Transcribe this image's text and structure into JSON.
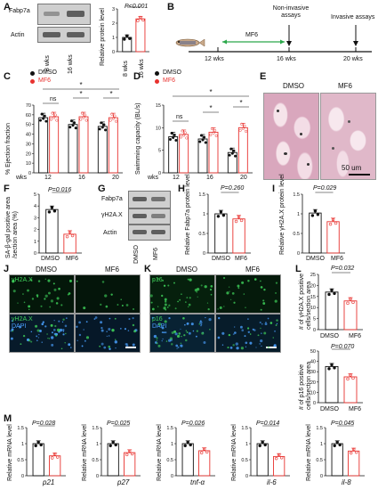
{
  "panels": {
    "A": {
      "label": "A",
      "blot_labels": [
        "Fabp7a",
        "Actin"
      ],
      "lanes": [
        "8 wks",
        "16 wks"
      ],
      "chart_label": "Relative protein level",
      "pvalue": "P<0.001"
    },
    "B": {
      "label": "B",
      "treatment": "MF6",
      "weeks": [
        "12 wks",
        "16 wks",
        "20 wks"
      ],
      "noninvasive": "Non-invasive assays",
      "invasive": "Invasive assays"
    },
    "C": {
      "label": "C",
      "ylabel": "% Ejection fraction",
      "ns": "ns",
      "star": "*"
    },
    "D": {
      "label": "D",
      "ylabel": "Swimming capacity (BL/s)",
      "ns": "ns",
      "star": "*"
    },
    "E": {
      "label": "E",
      "groups": [
        "DMSO",
        "MF6"
      ],
      "scale": "50 um"
    },
    "F": {
      "label": "F",
      "ylabel": "SA-β-gal positive area /section area (%)",
      "pvalue": "P=0.016"
    },
    "G": {
      "label": "G",
      "blot_labels": [
        "Fabp7a",
        "γH2A.X",
        "Actin"
      ],
      "lanes": [
        "DMSO",
        "MF6"
      ]
    },
    "H": {
      "label": "H",
      "ylabel": "Relative Fabp7a protein level",
      "pvalue": "P=0.260"
    },
    "I": {
      "label": "I",
      "ylabel": "Relative γH2A.X protein level",
      "pvalue": "P=0.029"
    },
    "J": {
      "label": "J",
      "groups": [
        "DMSO",
        "MF6"
      ],
      "stain1": "γH2A.X",
      "stain2": "γH2A.X",
      "dapi": "DAPI"
    },
    "K": {
      "label": "K",
      "groups": [
        "DMSO",
        "MF6"
      ],
      "stain1": "p16",
      "stain2": "p16",
      "dapi": "DAPI"
    },
    "L": {
      "label": "L",
      "ylabel1": "# of γH2A.X positive cells/section area",
      "pvalue1": "P=0.032",
      "ylabel2": "# of p16 positive cells/section area",
      "pvalue2": "P=0.070"
    },
    "M": {
      "label": "M",
      "ylabel": "Relative mRNA level",
      "genes": [
        "p21",
        "p27",
        "tnf-α",
        "il-6",
        "il-8"
      ],
      "pvalues": [
        "P=0.028",
        "P=0.025",
        "P=0.026",
        "P=0.014",
        "P=0.045"
      ]
    }
  },
  "legend": {
    "dmso": "DMSO",
    "mf6": "MF6"
  },
  "week_axis": {
    "prefix": "wks",
    "ticks": [
      "12",
      "16",
      "20"
    ]
  },
  "colors": {
    "dmso": "#111111",
    "mf6": "#e8322f",
    "green_arrow": "#2aa84a"
  },
  "chart_data": [
    {
      "type": "bar",
      "panel": "A",
      "categories": [
        "8 wks",
        "16 wks"
      ],
      "values": [
        1.0,
        2.3
      ],
      "ylim": [
        0,
        3
      ],
      "yticks": [
        0,
        1,
        2,
        3
      ]
    },
    {
      "type": "bar",
      "panel": "C",
      "categories": [
        "12",
        "16",
        "20"
      ],
      "series": [
        {
          "name": "DMSO",
          "values": [
            57,
            50,
            48
          ]
        },
        {
          "name": "MF6",
          "values": [
            58,
            58,
            57
          ]
        }
      ],
      "ylim": [
        0,
        70
      ],
      "yticks": [
        0,
        10,
        20,
        30,
        40,
        50,
        60,
        70
      ]
    },
    {
      "type": "bar",
      "panel": "D",
      "categories": [
        "12",
        "16",
        "20"
      ],
      "series": [
        {
          "name": "DMSO",
          "values": [
            8,
            7.5,
            4.5
          ]
        },
        {
          "name": "MF6",
          "values": [
            8.5,
            9,
            10
          ]
        }
      ],
      "ylim": [
        0,
        15
      ],
      "yticks": [
        0,
        5,
        10,
        15
      ]
    },
    {
      "type": "bar",
      "panel": "F",
      "categories": [
        "DMSO",
        "MF6"
      ],
      "values": [
        3.7,
        1.6
      ],
      "ylim": [
        0,
        5
      ],
      "yticks": [
        0,
        1,
        2,
        3,
        4,
        5
      ]
    },
    {
      "type": "bar",
      "panel": "H",
      "categories": [
        "DMSO",
        "MF6"
      ],
      "values": [
        1.0,
        0.87
      ],
      "ylim": [
        0,
        1.5
      ],
      "yticks": [
        0,
        0.5,
        1.0,
        1.5
      ]
    },
    {
      "type": "bar",
      "panel": "I",
      "categories": [
        "DMSO",
        "MF6"
      ],
      "values": [
        1.02,
        0.8
      ],
      "ylim": [
        0,
        1.5
      ],
      "yticks": [
        0,
        0.5,
        1.0,
        1.5
      ]
    },
    {
      "type": "bar",
      "panel": "L1",
      "categories": [
        "DMSO",
        "MF6"
      ],
      "values": [
        17,
        13
      ],
      "ylim": [
        0,
        25
      ],
      "yticks": [
        0,
        5,
        10,
        15,
        20,
        25
      ]
    },
    {
      "type": "bar",
      "panel": "L2",
      "categories": [
        "DMSO",
        "MF6"
      ],
      "values": [
        35,
        25
      ],
      "ylim": [
        0,
        50
      ],
      "yticks": [
        0,
        10,
        20,
        30,
        40,
        50
      ]
    },
    {
      "type": "bar",
      "panel": "M1",
      "categories": [
        "DMSO",
        "MF6"
      ],
      "values": [
        1.0,
        0.62
      ],
      "ylim": [
        0,
        1.5
      ],
      "yticks": [
        0,
        0.5,
        1.0,
        1.5
      ]
    },
    {
      "type": "bar",
      "panel": "M2",
      "categories": [
        "DMSO",
        "MF6"
      ],
      "values": [
        1.0,
        0.72
      ],
      "ylim": [
        0,
        1.5
      ],
      "yticks": [
        0,
        0.5,
        1.0,
        1.5
      ]
    },
    {
      "type": "bar",
      "panel": "M3",
      "categories": [
        "DMSO",
        "MF6"
      ],
      "values": [
        1.0,
        0.78
      ],
      "ylim": [
        0,
        1.5
      ],
      "yticks": [
        0,
        0.5,
        1.0,
        1.5
      ]
    },
    {
      "type": "bar",
      "panel": "M4",
      "categories": [
        "DMSO",
        "MF6"
      ],
      "values": [
        1.0,
        0.6
      ],
      "ylim": [
        0,
        1.5
      ],
      "yticks": [
        0,
        0.5,
        1.0,
        1.5
      ]
    },
    {
      "type": "bar",
      "panel": "M5",
      "categories": [
        "DMSO",
        "MF6"
      ],
      "values": [
        1.0,
        0.77
      ],
      "ylim": [
        0,
        1.5
      ],
      "yticks": [
        0,
        0.5,
        1.0,
        1.5
      ]
    }
  ]
}
